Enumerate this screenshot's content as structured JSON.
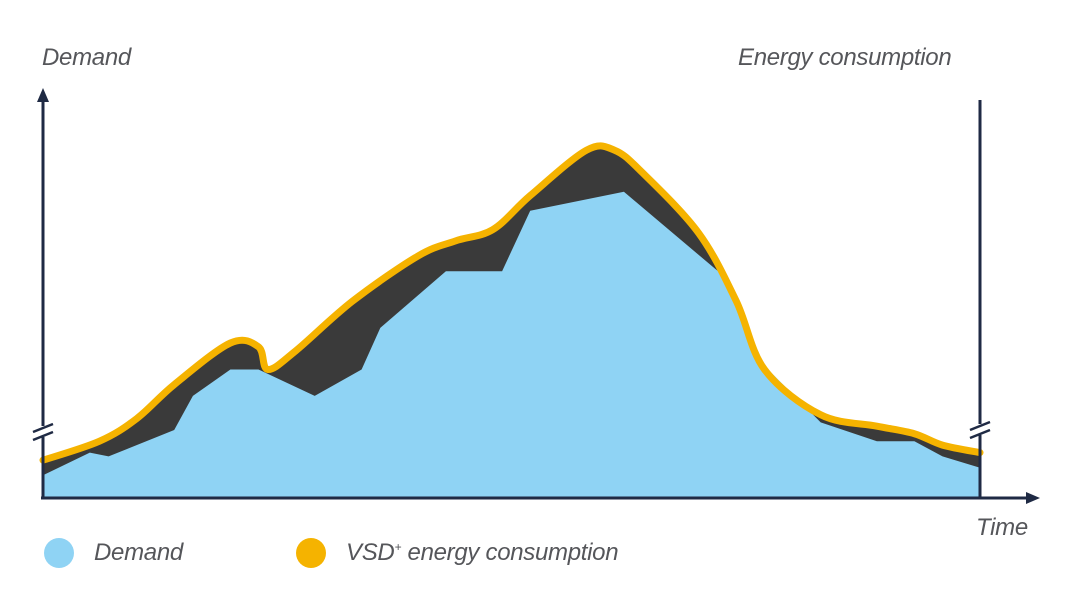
{
  "chart_data": {
    "type": "area",
    "title": "",
    "ylabel_left": "Demand",
    "ylabel_right": "Energy consumption",
    "xlabel": "Time",
    "xlim": [
      0,
      100
    ],
    "ylim": [
      0,
      100
    ],
    "axis_breaks": true,
    "grid": false,
    "legend_position": "bottom-left",
    "series": [
      {
        "name": "Demand",
        "color": "#8fd3f4",
        "points": [
          [
            0,
            6
          ],
          [
            5,
            12
          ],
          [
            7,
            11
          ],
          [
            14,
            18
          ],
          [
            16,
            27
          ],
          [
            20,
            34
          ],
          [
            23,
            34
          ],
          [
            29,
            27
          ],
          [
            34,
            34
          ],
          [
            36,
            45
          ],
          [
            43,
            60
          ],
          [
            49,
            60
          ],
          [
            52,
            76
          ],
          [
            62,
            81
          ],
          [
            73,
            58
          ],
          [
            77,
            35
          ],
          [
            83,
            20
          ],
          [
            89,
            15
          ],
          [
            93,
            15
          ],
          [
            96,
            11
          ],
          [
            100,
            8
          ]
        ]
      },
      {
        "name": "VSD+ energy consumption",
        "color": "#f5b300",
        "points": [
          [
            0,
            10
          ],
          [
            6,
            15
          ],
          [
            10,
            21
          ],
          [
            14,
            30
          ],
          [
            20,
            41
          ],
          [
            23,
            40
          ],
          [
            24,
            34
          ],
          [
            27,
            39
          ],
          [
            33,
            52
          ],
          [
            40,
            64
          ],
          [
            44,
            68
          ],
          [
            48,
            71
          ],
          [
            52,
            80
          ],
          [
            58,
            92
          ],
          [
            61,
            92
          ],
          [
            64,
            86
          ],
          [
            70,
            70
          ],
          [
            74,
            52
          ],
          [
            77,
            34
          ],
          [
            83,
            22
          ],
          [
            89,
            19
          ],
          [
            93,
            17
          ],
          [
            96,
            14
          ],
          [
            100,
            12
          ]
        ]
      }
    ],
    "gap_fill_color": "#3a3a3a",
    "legend": [
      {
        "label": "Demand",
        "sup": "",
        "color": "#8fd3f4"
      },
      {
        "label": "VSD",
        "sup": "+",
        "label_after": " energy consumption",
        "color": "#f5b300"
      }
    ]
  }
}
